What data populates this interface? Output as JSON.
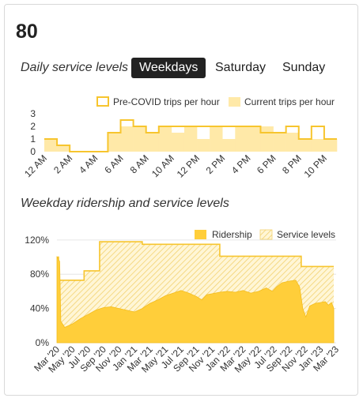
{
  "route": "80",
  "service": {
    "title": "Daily service levels",
    "tabs": [
      {
        "label": "Weekdays",
        "active": true
      },
      {
        "label": "Saturday",
        "active": false
      },
      {
        "label": "Sunday",
        "active": false
      }
    ]
  },
  "ridership_title": "Weekday ridership and service levels",
  "colors": {
    "fill": "#ffe9a8",
    "line": "#f7c52e",
    "solid": "#ffce3a",
    "text": "#333333",
    "tab_active_bg": "#222222"
  },
  "chart_data": [
    {
      "type": "area",
      "name": "daily-service",
      "legend": [
        "Pre-COVID trips per hour",
        "Current trips per hour"
      ],
      "legend_position": "top-right",
      "y_ticks": [
        "0",
        "1",
        "2",
        "3"
      ],
      "ylim": [
        0,
        3
      ],
      "x_ticks": [
        "12 AM",
        "2 AM",
        "4 AM",
        "6 AM",
        "8 AM",
        "10 AM",
        "12 PM",
        "2 PM",
        "4 PM",
        "6 PM",
        "8 PM",
        "10 PM"
      ],
      "xlim": [
        0,
        23
      ],
      "pre_covid": [
        1,
        0.5,
        0,
        0,
        0,
        1.5,
        2.5,
        2,
        1.5,
        2,
        2,
        2,
        2,
        2,
        2,
        2,
        2,
        1.5,
        1.5,
        2,
        1,
        2,
        1
      ],
      "current": [
        1,
        0.5,
        0,
        0,
        0,
        1.5,
        2,
        2,
        1.5,
        2,
        1.5,
        2,
        1,
        2,
        1,
        2,
        2,
        2,
        1.5,
        1.5,
        1,
        1,
        1
      ]
    },
    {
      "type": "area",
      "name": "weekday-ridership",
      "legend": [
        "Ridership",
        "Service levels"
      ],
      "legend_position": "top-right",
      "y_ticks": [
        "0%",
        "40%",
        "80%",
        "120%"
      ],
      "ylim": [
        0,
        130
      ],
      "x_ticks": [
        "Mar '20",
        "May '20",
        "Jul '20",
        "Sep '20",
        "Nov '20",
        "Jan '21",
        "Mar '21",
        "May '21",
        "Jul '21",
        "Sep '21",
        "Nov '21",
        "Jan '22",
        "Mar '22",
        "May '22",
        "Jul '22",
        "Sep '22",
        "Nov '22",
        "Jan '23",
        "Mar '23"
      ],
      "xlim": [
        0,
        36
      ],
      "service_levels": [
        [
          0,
          100
        ],
        [
          0.2,
          100
        ],
        [
          0.2,
          73
        ],
        [
          3.5,
          73
        ],
        [
          3.5,
          84
        ],
        [
          5.5,
          84
        ],
        [
          5.5,
          118
        ],
        [
          11,
          118
        ],
        [
          11,
          115
        ],
        [
          21,
          115
        ],
        [
          21,
          101
        ],
        [
          31.5,
          101
        ],
        [
          31.5,
          89
        ],
        [
          35.7,
          89
        ]
      ],
      "ridership": [
        [
          0,
          100
        ],
        [
          0.35,
          95
        ],
        [
          0.5,
          25
        ],
        [
          1,
          18
        ],
        [
          2,
          22
        ],
        [
          3,
          28
        ],
        [
          4,
          33
        ],
        [
          5,
          38
        ],
        [
          6,
          41
        ],
        [
          7,
          42
        ],
        [
          8,
          40
        ],
        [
          9,
          38
        ],
        [
          10,
          36
        ],
        [
          11,
          40
        ],
        [
          12,
          46
        ],
        [
          13,
          50
        ],
        [
          14,
          55
        ],
        [
          15,
          58
        ],
        [
          16,
          61
        ],
        [
          17,
          58
        ],
        [
          18,
          54
        ],
        [
          18.7,
          50
        ],
        [
          19.3,
          56
        ],
        [
          21,
          59
        ],
        [
          22,
          60
        ],
        [
          23,
          59
        ],
        [
          24,
          61
        ],
        [
          25,
          58
        ],
        [
          26,
          60
        ],
        [
          27,
          64
        ],
        [
          27.8,
          60
        ],
        [
          28.3,
          65
        ],
        [
          29,
          70
        ],
        [
          30,
          72
        ],
        [
          30.8,
          73
        ],
        [
          31.3,
          65
        ],
        [
          31.7,
          40
        ],
        [
          32.1,
          30
        ],
        [
          32.6,
          43
        ],
        [
          33.3,
          46
        ],
        [
          34,
          47
        ],
        [
          34.6,
          48
        ],
        [
          35,
          44
        ],
        [
          35.4,
          47
        ],
        [
          35.7,
          40
        ]
      ]
    }
  ]
}
